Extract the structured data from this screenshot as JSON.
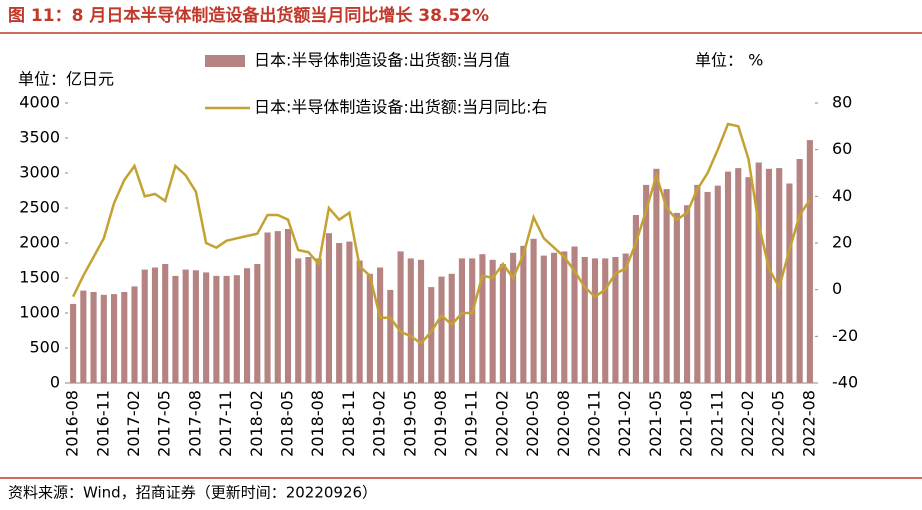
{
  "chart_data": {
    "type": "bar-line",
    "title": "图 11：8 月日本半导体制造设备出货额当月同比增长 38.52%",
    "left_unit": "单位：亿日元",
    "right_unit": "单位： %",
    "source": "资料来源：Wind，招商证券（更新时间：20220926）",
    "categories": [
      "2016-08",
      null,
      null,
      "2016-11",
      null,
      null,
      "2017-02",
      null,
      null,
      "2017-05",
      null,
      null,
      "2017-08",
      null,
      null,
      "2017-11",
      null,
      null,
      "2018-02",
      null,
      null,
      "2018-05",
      null,
      null,
      "2018-08",
      null,
      null,
      "2018-11",
      null,
      null,
      "2019-02",
      null,
      null,
      "2019-05",
      null,
      null,
      "2019-08",
      null,
      null,
      "2019-11",
      null,
      null,
      "2020-02",
      null,
      null,
      "2020-05",
      null,
      null,
      "2020-08",
      null,
      null,
      "2020-11",
      null,
      null,
      "2021-02",
      null,
      null,
      "2021-05",
      null,
      null,
      "2021-08",
      null,
      null,
      "2021-11",
      null,
      null,
      "2022-02",
      null,
      null,
      "2022-05",
      null,
      null,
      "2022-08"
    ],
    "series": [
      {
        "name": "日本:半导体制造设备:出货额:当月值",
        "color": "#b58482",
        "kind": "bar",
        "values": [
          1130,
          1320,
          1300,
          1260,
          1270,
          1300,
          1380,
          1620,
          1650,
          1700,
          1530,
          1620,
          1610,
          1580,
          1530,
          1530,
          1540,
          1640,
          1700,
          2150,
          2170,
          2200,
          1780,
          1800,
          1780,
          2140,
          2000,
          2020,
          1750,
          1560,
          1650,
          1330,
          1880,
          1780,
          1760,
          1370,
          1520,
          1560,
          1780,
          1780,
          1840,
          1760,
          1700,
          1860,
          1960,
          2060,
          1820,
          1860,
          1880,
          1950,
          1800,
          1780,
          1780,
          1800,
          1850,
          2400,
          2830,
          3060,
          2770,
          2430,
          2540,
          2830,
          2730,
          2820,
          3020,
          3070,
          2940,
          3150,
          3060,
          3070,
          2850,
          3200,
          3470
        ]
      },
      {
        "name": "日本:半导体制造设备:出货额:当月同比:右",
        "color": "#c4a232",
        "kind": "line",
        "axis": "y2",
        "values": [
          -3,
          6,
          14,
          22,
          37,
          47,
          53,
          40,
          41,
          38,
          53,
          49,
          42,
          20,
          18,
          21,
          22,
          23,
          24,
          32,
          32,
          30,
          17,
          16,
          11,
          35,
          30,
          33,
          10,
          6,
          -12,
          -12,
          -18,
          -20,
          -23,
          -18,
          -11,
          -15,
          -10,
          -10,
          6,
          5,
          11,
          5,
          15,
          31,
          22,
          18,
          14,
          8,
          1,
          -3,
          0,
          7,
          9,
          20,
          34,
          49,
          35,
          30,
          33,
          43,
          50,
          60,
          71,
          70,
          56,
          28,
          9,
          1,
          17,
          32,
          38.52
        ]
      }
    ],
    "ylim": [
      0,
      4000
    ],
    "yticks": [
      0,
      500,
      1000,
      1500,
      2000,
      2500,
      3000,
      3500,
      4000
    ],
    "y2lim": [
      -40,
      80
    ],
    "y2ticks": [
      -40,
      -20,
      0,
      20,
      40,
      60,
      80
    ],
    "negative_tick_color": "#e00000",
    "grid": false
  }
}
